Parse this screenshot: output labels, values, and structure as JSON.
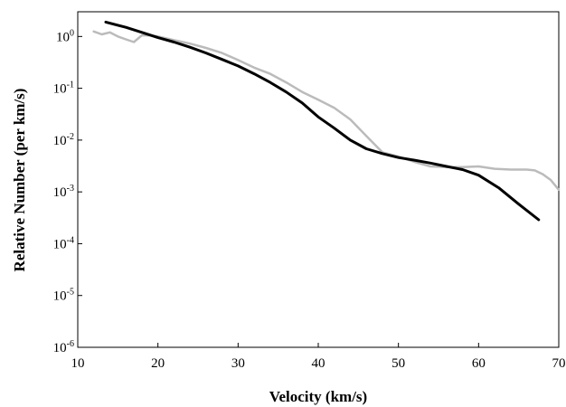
{
  "chart_data": {
    "type": "line",
    "title": "",
    "xlabel": "Velocity (km/s)",
    "ylabel": "Relative Number (per km/s)",
    "xlim": [
      10,
      70
    ],
    "ylim": [
      1e-06,
      3
    ],
    "yscale": "log",
    "grid": false,
    "x_ticks": [
      10,
      20,
      30,
      40,
      50,
      60,
      70
    ],
    "x_tick_labels": [
      "10",
      "20",
      "30",
      "40",
      "50",
      "60",
      "70"
    ],
    "y_ticks": [
      {
        "value": 1,
        "base": "10",
        "exp": "0"
      },
      {
        "value": 0.1,
        "base": "10",
        "exp": "-1"
      },
      {
        "value": 0.01,
        "base": "10",
        "exp": "-2"
      },
      {
        "value": 0.001,
        "base": "10",
        "exp": "-3"
      },
      {
        "value": 0.0001,
        "base": "10",
        "exp": "-4"
      },
      {
        "value": 1e-05,
        "base": "10",
        "exp": "-5"
      },
      {
        "value": 1e-06,
        "base": "10",
        "exp": "-6"
      }
    ],
    "series": [
      {
        "color": "#bbbbbb",
        "x": [
          12,
          13,
          14,
          15,
          16,
          17,
          18,
          19,
          20,
          22,
          24,
          26,
          28,
          30,
          32,
          34,
          36,
          38,
          40,
          42,
          44,
          46,
          48,
          50,
          52,
          54,
          56,
          58,
          60,
          62,
          64,
          66,
          67,
          68,
          69,
          70
        ],
        "y": [
          1.25,
          1.1,
          1.2,
          1.0,
          0.88,
          0.78,
          1.05,
          1.05,
          1.0,
          0.85,
          0.73,
          0.6,
          0.48,
          0.35,
          0.25,
          0.19,
          0.13,
          0.085,
          0.06,
          0.042,
          0.025,
          0.012,
          0.0058,
          0.0048,
          0.0038,
          0.0031,
          0.003,
          0.003,
          0.0031,
          0.0028,
          0.0027,
          0.0027,
          0.0026,
          0.0022,
          0.0017,
          0.0011
        ]
      },
      {
        "color": "#000000",
        "x": [
          13.5,
          16,
          18,
          20,
          22,
          24,
          26,
          28,
          30,
          32,
          34,
          36,
          38,
          40,
          42,
          44,
          46,
          48,
          50,
          52,
          54,
          56,
          58,
          60,
          62.5,
          65,
          67.5
        ],
        "y": [
          1.9,
          1.5,
          1.2,
          0.95,
          0.78,
          0.62,
          0.48,
          0.36,
          0.27,
          0.19,
          0.13,
          0.085,
          0.052,
          0.028,
          0.017,
          0.01,
          0.0068,
          0.0055,
          0.0046,
          0.0041,
          0.0036,
          0.0031,
          0.0027,
          0.0021,
          0.0012,
          0.00058,
          0.00029
        ]
      }
    ]
  }
}
